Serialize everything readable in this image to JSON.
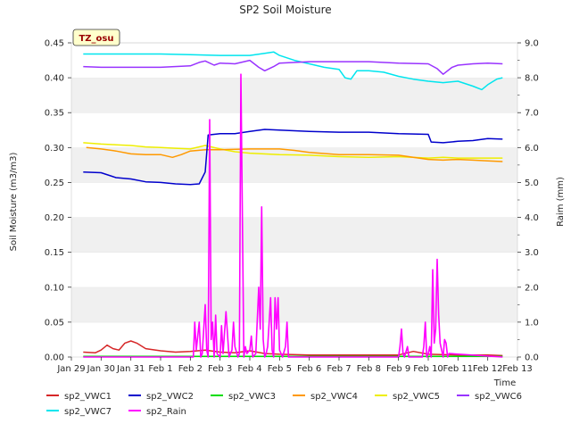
{
  "chart_data": {
    "type": "line",
    "title": "SP2 Soil Moisture",
    "xlabel": "Time",
    "ylabel": "Soil Moisture (m3/m3)",
    "y2label": "Raim (mm)",
    "badge": "TZ_osu",
    "x_ticks": [
      "Jan 29",
      "Jan 30",
      "Jan 31",
      "Feb 1",
      "Feb 2",
      "Feb 3",
      "Feb 4",
      "Feb 5",
      "Feb 6",
      "Feb 7",
      "Feb 8",
      "Feb 9",
      "Feb 10",
      "Feb 11",
      "Feb 12",
      "Feb 13"
    ],
    "xlim": [
      0,
      15
    ],
    "ylim": [
      0,
      0.45
    ],
    "y_ticks": [
      "0.00",
      "0.05",
      "0.10",
      "0.15",
      "0.20",
      "0.25",
      "0.30",
      "0.35",
      "0.40",
      "0.45"
    ],
    "y2lim": [
      0,
      9
    ],
    "y2_ticks": [
      "0.0",
      "1.0",
      "2.0",
      "3.0",
      "4.0",
      "5.0",
      "6.0",
      "7.0",
      "8.0",
      "9.0"
    ],
    "grid": "horizontal-bands",
    "legend_position": "bottom",
    "series": [
      {
        "name": "sp2_VWC1",
        "color": "#d62728",
        "axis": "left",
        "x": [
          0.4,
          0.8,
          1.0,
          1.2,
          1.4,
          1.6,
          1.8,
          2.0,
          2.2,
          2.5,
          3.0,
          3.5,
          4.0,
          4.5,
          5.0,
          5.5,
          6.0,
          6.5,
          7.0,
          8.0,
          9.0,
          10.0,
          11.0,
          11.5,
          12.0,
          13.0,
          14.0,
          14.5
        ],
        "y": [
          0.007,
          0.006,
          0.01,
          0.017,
          0.012,
          0.01,
          0.02,
          0.023,
          0.02,
          0.012,
          0.009,
          0.007,
          0.008,
          0.01,
          0.007,
          0.006,
          0.009,
          0.005,
          0.004,
          0.003,
          0.003,
          0.003,
          0.003,
          0.008,
          0.004,
          0.003,
          0.003,
          0.002
        ]
      },
      {
        "name": "sp2_VWC2",
        "color": "#0000cc",
        "axis": "left",
        "x": [
          0.4,
          1.0,
          1.5,
          2.0,
          2.5,
          3.0,
          3.5,
          4.0,
          4.3,
          4.5,
          4.6,
          5.0,
          5.5,
          6.0,
          6.5,
          7.0,
          8.0,
          9.0,
          10.0,
          11.0,
          12.0,
          12.1,
          12.5,
          13.0,
          13.5,
          14.0,
          14.5
        ],
        "y": [
          0.265,
          0.264,
          0.257,
          0.255,
          0.251,
          0.25,
          0.248,
          0.247,
          0.248,
          0.265,
          0.318,
          0.32,
          0.32,
          0.323,
          0.326,
          0.325,
          0.323,
          0.322,
          0.322,
          0.32,
          0.319,
          0.308,
          0.307,
          0.309,
          0.31,
          0.313,
          0.312
        ]
      },
      {
        "name": "sp2_VWC3",
        "color": "#00dd00",
        "axis": "left",
        "x": [
          0.4,
          14.5
        ],
        "y": [
          0.001,
          0.001
        ]
      },
      {
        "name": "sp2_VWC4",
        "color": "#ff9900",
        "axis": "left",
        "x": [
          0.5,
          1.0,
          1.5,
          2.0,
          2.5,
          3.0,
          3.4,
          3.7,
          4.0,
          4.5,
          5.0,
          6.0,
          7.0,
          7.5,
          8.0,
          9.0,
          10.0,
          11.0,
          11.5,
          12.0,
          12.5,
          13.0,
          13.5,
          14.0,
          14.5
        ],
        "y": [
          0.3,
          0.298,
          0.295,
          0.291,
          0.29,
          0.29,
          0.286,
          0.29,
          0.295,
          0.297,
          0.297,
          0.298,
          0.298,
          0.296,
          0.293,
          0.29,
          0.29,
          0.289,
          0.286,
          0.283,
          0.282,
          0.283,
          0.282,
          0.281,
          0.28
        ]
      },
      {
        "name": "sp2_VWC5",
        "color": "#eeee00",
        "axis": "left",
        "x": [
          0.4,
          1.0,
          1.5,
          2.0,
          2.5,
          3.0,
          3.5,
          4.0,
          4.5,
          5.0,
          5.5,
          6.0,
          7.0,
          8.0,
          9.0,
          10.0,
          11.0,
          12.0,
          12.5,
          13.0,
          14.0,
          14.5
        ],
        "y": [
          0.307,
          0.305,
          0.304,
          0.303,
          0.301,
          0.3,
          0.299,
          0.298,
          0.303,
          0.298,
          0.294,
          0.292,
          0.29,
          0.289,
          0.287,
          0.286,
          0.287,
          0.285,
          0.286,
          0.285,
          0.285,
          0.285
        ]
      },
      {
        "name": "sp2_VWC6",
        "color": "#9933ff",
        "axis": "left",
        "x": [
          0.4,
          1.0,
          2.0,
          3.0,
          4.0,
          4.3,
          4.5,
          4.8,
          5.0,
          5.5,
          6.0,
          6.3,
          6.5,
          6.8,
          7.0,
          8.0,
          9.0,
          10.0,
          11.0,
          12.0,
          12.3,
          12.5,
          12.8,
          13.0,
          13.5,
          14.0,
          14.5
        ],
        "y": [
          0.416,
          0.415,
          0.415,
          0.415,
          0.417,
          0.422,
          0.424,
          0.418,
          0.421,
          0.42,
          0.425,
          0.415,
          0.41,
          0.416,
          0.421,
          0.423,
          0.423,
          0.423,
          0.421,
          0.42,
          0.413,
          0.405,
          0.415,
          0.418,
          0.42,
          0.421,
          0.42
        ]
      },
      {
        "name": "sp2_VWC7",
        "color": "#00e5ee",
        "axis": "left",
        "x": [
          0.4,
          1.0,
          2.0,
          3.0,
          4.0,
          5.0,
          6.0,
          6.5,
          6.8,
          7.0,
          7.5,
          8.0,
          8.5,
          9.0,
          9.2,
          9.4,
          9.6,
          10.0,
          10.5,
          11.0,
          11.5,
          12.0,
          12.5,
          13.0,
          13.5,
          13.8,
          14.0,
          14.3,
          14.5
        ],
        "y": [
          0.434,
          0.434,
          0.434,
          0.434,
          0.433,
          0.432,
          0.432,
          0.435,
          0.437,
          0.432,
          0.425,
          0.42,
          0.415,
          0.412,
          0.4,
          0.398,
          0.41,
          0.41,
          0.408,
          0.402,
          0.398,
          0.395,
          0.393,
          0.395,
          0.388,
          0.383,
          0.39,
          0.398,
          0.4
        ]
      },
      {
        "name": "sp2_Rain",
        "color": "#ff00ff",
        "axis": "right",
        "x": [
          0.4,
          4.1,
          4.15,
          4.2,
          4.3,
          4.35,
          4.4,
          4.5,
          4.55,
          4.6,
          4.65,
          4.7,
          4.75,
          4.8,
          4.85,
          4.9,
          5.0,
          5.05,
          5.1,
          5.2,
          5.3,
          5.35,
          5.4,
          5.45,
          5.5,
          5.6,
          5.65,
          5.7,
          5.8,
          5.85,
          5.9,
          6.0,
          6.05,
          6.1,
          6.2,
          6.3,
          6.35,
          6.4,
          6.45,
          6.5,
          6.55,
          6.6,
          6.65,
          6.7,
          6.75,
          6.8,
          6.85,
          6.9,
          6.95,
          7.0,
          7.1,
          7.2,
          7.25,
          7.3,
          7.4,
          7.5,
          7.6,
          7.7,
          7.8,
          7.9,
          8.0,
          11.0,
          11.05,
          11.1,
          11.15,
          11.2,
          11.3,
          11.35,
          11.4,
          11.5,
          11.6,
          11.7,
          11.8,
          11.85,
          11.9,
          11.95,
          12.0,
          12.05,
          12.1,
          12.15,
          12.2,
          12.25,
          12.3,
          12.35,
          12.4,
          12.5,
          12.55,
          12.6,
          12.65,
          12.7,
          14.5
        ],
        "y": [
          0.0,
          0.0,
          1.0,
          0.2,
          1.0,
          0.0,
          0.1,
          1.5,
          0.2,
          0.0,
          6.8,
          0.5,
          1.0,
          0.0,
          1.2,
          0.1,
          0.0,
          0.9,
          0.1,
          1.3,
          0.0,
          0.1,
          0.2,
          1.0,
          0.3,
          0.0,
          0.1,
          8.1,
          0.0,
          0.3,
          0.1,
          0.2,
          0.6,
          0.0,
          0.1,
          2.0,
          0.8,
          4.3,
          0.5,
          0.0,
          0.1,
          0.3,
          1.0,
          1.7,
          0.2,
          0.0,
          1.7,
          0.8,
          1.7,
          0.2,
          0.0,
          0.3,
          1.0,
          0.0,
          0.0,
          0.0,
          0.0,
          0.0,
          0.0,
          0.0,
          0.0,
          0.0,
          0.3,
          0.8,
          0.1,
          0.0,
          0.3,
          0.0,
          0.0,
          0.0,
          0.0,
          0.0,
          0.0,
          0.3,
          1.0,
          0.0,
          0.1,
          0.3,
          0.0,
          2.5,
          0.4,
          0.8,
          2.8,
          1.2,
          0.4,
          0.0,
          0.5,
          0.4,
          0.0,
          0.1,
          0.0
        ]
      }
    ]
  }
}
